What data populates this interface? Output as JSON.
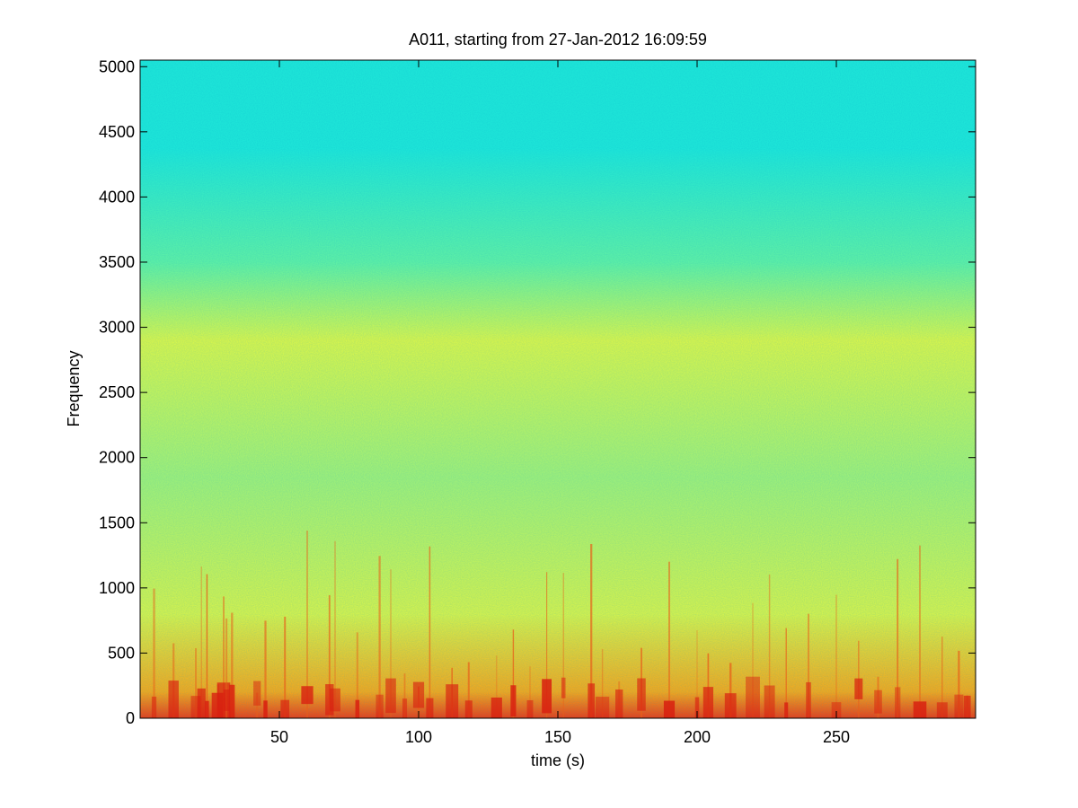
{
  "chart_data": {
    "type": "heatmap",
    "subtype": "spectrogram",
    "title": "A011, starting from 27-Jan-2012 16:09:59",
    "xlabel": "time (s)",
    "ylabel": "Frequency",
    "xlim": [
      0,
      300
    ],
    "ylim": [
      0,
      5050
    ],
    "xticks": [
      50,
      100,
      150,
      200,
      250
    ],
    "yticks": [
      0,
      500,
      1000,
      1500,
      2000,
      2500,
      3000,
      3500,
      4000,
      4500,
      5000
    ],
    "colormap": "jet",
    "grid": false,
    "bands": [
      {
        "freq_range": [
          3700,
          5050
        ],
        "level": "low",
        "color": "#1ee6d8"
      },
      {
        "freq_range": [
          3300,
          3700
        ],
        "level": "low-medium",
        "color": "#5ef0a6"
      },
      {
        "freq_range": [
          2500,
          3300
        ],
        "level": "medium-high",
        "color": "#d8f54c"
      },
      {
        "freq_range": [
          1200,
          2500
        ],
        "level": "medium",
        "color": "#9ef07a"
      },
      {
        "freq_range": [
          400,
          1200
        ],
        "level": "medium-high",
        "color": "#d4f24e"
      },
      {
        "freq_range": [
          0,
          400
        ],
        "level": "high",
        "color": "#f2a81e"
      }
    ],
    "transient_times": [
      5,
      12,
      20,
      22,
      24,
      28,
      30,
      31,
      33,
      42,
      45,
      52,
      60,
      68,
      70,
      78,
      86,
      90,
      95,
      100,
      104,
      112,
      118,
      128,
      134,
      140,
      146,
      152,
      162,
      166,
      172,
      180,
      190,
      200,
      204,
      212,
      220,
      226,
      232,
      240,
      250,
      258,
      265,
      272,
      280,
      288,
      294,
      297
    ]
  }
}
